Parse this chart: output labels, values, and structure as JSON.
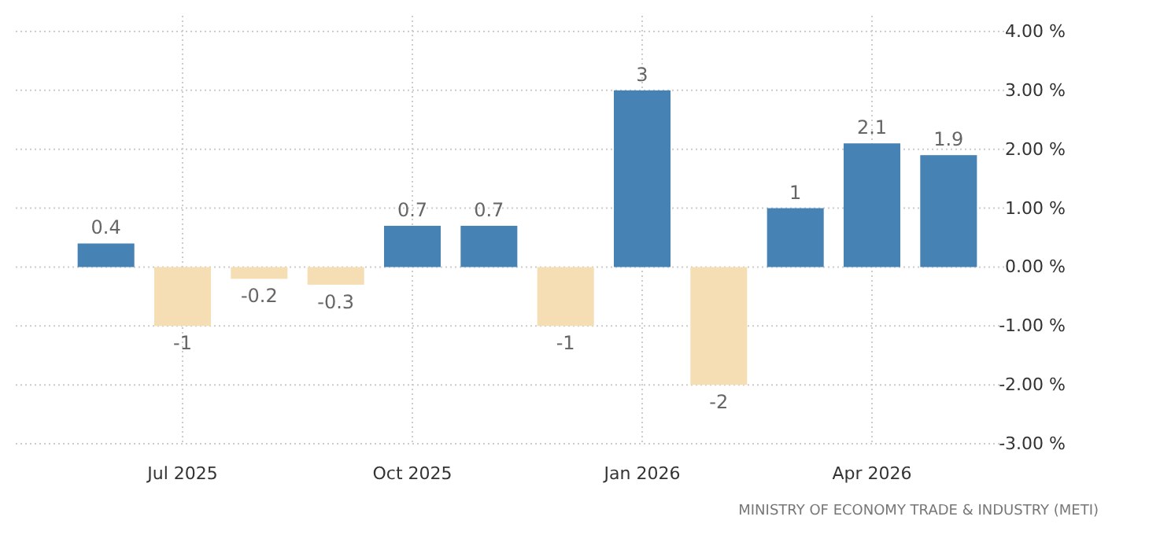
{
  "chart_data": {
    "type": "bar",
    "categories": [
      null,
      "Jul 2025",
      null,
      null,
      "Oct 2025",
      null,
      null,
      "Jan 2026",
      null,
      null,
      "Apr 2026",
      null
    ],
    "values": [
      0.4,
      -1,
      -0.2,
      -0.3,
      0.7,
      0.7,
      -1,
      3,
      -2,
      1,
      2.1,
      1.9
    ],
    "colors": [
      "#4682b4",
      "#f5deb3",
      "#f5deb3",
      "#f5deb3",
      "#4682b4",
      "#4682b4",
      "#f5deb3",
      "#4682b4",
      "#f5deb3",
      "#4682b4",
      "#4682b4",
      "#4682b4"
    ],
    "ylim": [
      -3,
      4
    ],
    "yticks": [
      {
        "value": 4,
        "label": "4.00 %"
      },
      {
        "value": 3,
        "label": "3.00 %"
      },
      {
        "value": 2,
        "label": "2.00 %"
      },
      {
        "value": 1,
        "label": "1.00 %"
      },
      {
        "value": 0,
        "label": "0.00 %"
      },
      {
        "value": -1,
        "label": "-1.00 %"
      },
      {
        "value": -2,
        "label": "-2.00 %"
      },
      {
        "value": -3,
        "label": "-3.00 %"
      }
    ],
    "grid": true,
    "data_labels": true,
    "annotations": [
      "MINISTRY OF ECONOMY TRADE & INDUSTRY (METI)"
    ]
  }
}
